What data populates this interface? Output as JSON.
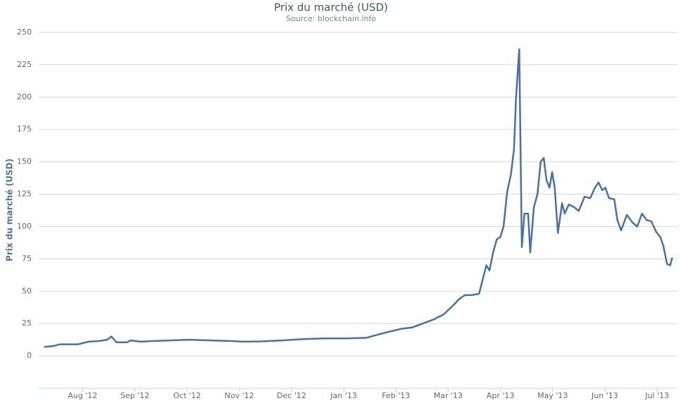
{
  "chart_data": {
    "type": "line",
    "title": "Prix du marché (USD)",
    "subtitle": "Source: blockchain.info",
    "y_label": "Prix du marché (USD)",
    "x": [
      0.26,
      0.43,
      0.57,
      0.77,
      0.91,
      1.11,
      1.31,
      1.47,
      1.55,
      1.65,
      1.85,
      1.92,
      2.12,
      2.32,
      2.66,
      3.06,
      3.47,
      3.87,
      4.07,
      4.41,
      4.81,
      5.22,
      5.62,
      6.03,
      6.43,
      6.7,
      6.9,
      7.11,
      7.31,
      7.51,
      7.71,
      7.91,
      8.12,
      8.21,
      8.32,
      8.45,
      8.59,
      8.73,
      8.79,
      8.86,
      8.93,
      9.0,
      9.06,
      9.13,
      9.2,
      9.26,
      9.3,
      9.36,
      9.41,
      9.46,
      9.53,
      9.57,
      9.64,
      9.71,
      9.77,
      9.83,
      9.88,
      9.94,
      9.99,
      10.04,
      10.1,
      10.18,
      10.23,
      10.31,
      10.41,
      10.5,
      10.61,
      10.72,
      10.81,
      10.88,
      10.95,
      11.01,
      11.08,
      11.18,
      11.24,
      11.31,
      11.42,
      11.53,
      11.62,
      11.71,
      11.8,
      11.89,
      11.98,
      12.06,
      12.12,
      12.19,
      12.25,
      12.29
    ],
    "series": [
      {
        "name": "Prix du marché (USD)",
        "color": "#4572a7",
        "values": [
          7,
          7.5,
          9,
          9,
          9,
          11,
          11.5,
          12.5,
          15,
          10.5,
          10.5,
          12,
          11,
          11.5,
          12,
          12.5,
          12,
          11.5,
          11,
          11.2,
          12,
          13,
          13.5,
          13.5,
          14,
          17,
          19,
          21,
          22,
          25,
          28,
          32,
          40,
          44,
          47,
          47,
          48,
          70,
          66,
          80,
          90,
          92,
          100,
          127,
          140,
          160,
          200,
          237,
          84,
          110,
          110,
          80,
          115,
          125,
          150,
          153,
          136,
          130,
          142,
          130,
          95,
          118,
          110,
          117,
          115,
          112,
          123,
          122,
          130,
          134,
          128,
          130,
          122,
          121,
          105,
          97,
          109,
          103,
          100,
          110,
          105,
          104,
          96,
          92,
          85,
          71,
          70,
          76
        ]
      }
    ],
    "xlim": [
      0.16,
      12.39
    ],
    "xticks": [
      {
        "value": 1,
        "label": "Aug '12"
      },
      {
        "value": 2,
        "label": "Sep '12"
      },
      {
        "value": 3,
        "label": "Oct '12"
      },
      {
        "value": 4,
        "label": "Nov '12"
      },
      {
        "value": 5,
        "label": "Dec '12"
      },
      {
        "value": 6,
        "label": "Jan '13"
      },
      {
        "value": 7,
        "label": "Feb '13"
      },
      {
        "value": 8,
        "label": "Mar '13"
      },
      {
        "value": 9,
        "label": "Apr '13"
      },
      {
        "value": 10,
        "label": "May '13"
      },
      {
        "value": 11,
        "label": "Jun '13"
      },
      {
        "value": 12,
        "label": "Jul '13"
      }
    ],
    "ylim": [
      -25,
      250
    ],
    "yticks": [
      0,
      25,
      50,
      75,
      100,
      125,
      150,
      175,
      200,
      225,
      250
    ],
    "grid": true
  }
}
